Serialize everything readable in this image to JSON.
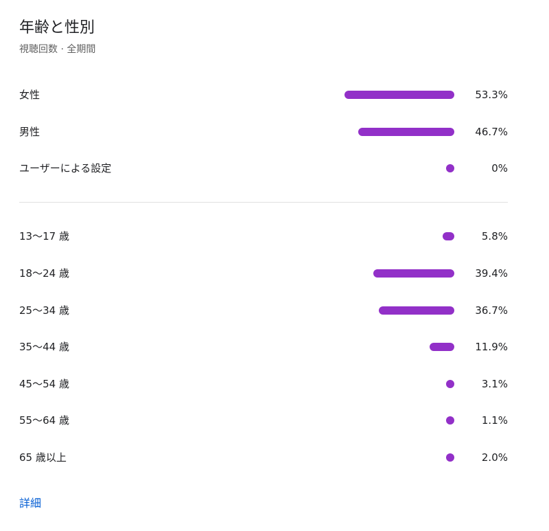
{
  "header": {
    "title": "年齢と性別",
    "subtitle": "視聴回数 · 全期間"
  },
  "accent_color": "#9230c8",
  "link_color": "#065fd4",
  "gender": [
    {
      "label": "女性",
      "percent": 53.3,
      "value_text": "53.3%"
    },
    {
      "label": "男性",
      "percent": 46.7,
      "value_text": "46.7%"
    },
    {
      "label": "ユーザーによる設定",
      "percent": 0,
      "value_text": "0%"
    }
  ],
  "age": [
    {
      "label": "13〜17 歳",
      "percent": 5.8,
      "value_text": "5.8%"
    },
    {
      "label": "18〜24 歳",
      "percent": 39.4,
      "value_text": "39.4%"
    },
    {
      "label": "25〜34 歳",
      "percent": 36.7,
      "value_text": "36.7%"
    },
    {
      "label": "35〜44 歳",
      "percent": 11.9,
      "value_text": "11.9%"
    },
    {
      "label": "45〜54 歳",
      "percent": 3.1,
      "value_text": "3.1%"
    },
    {
      "label": "55〜64 歳",
      "percent": 1.1,
      "value_text": "1.1%"
    },
    {
      "label": "65 歳以上",
      "percent": 2.0,
      "value_text": "2.0%"
    }
  ],
  "footer": {
    "more_label": "詳細"
  }
}
